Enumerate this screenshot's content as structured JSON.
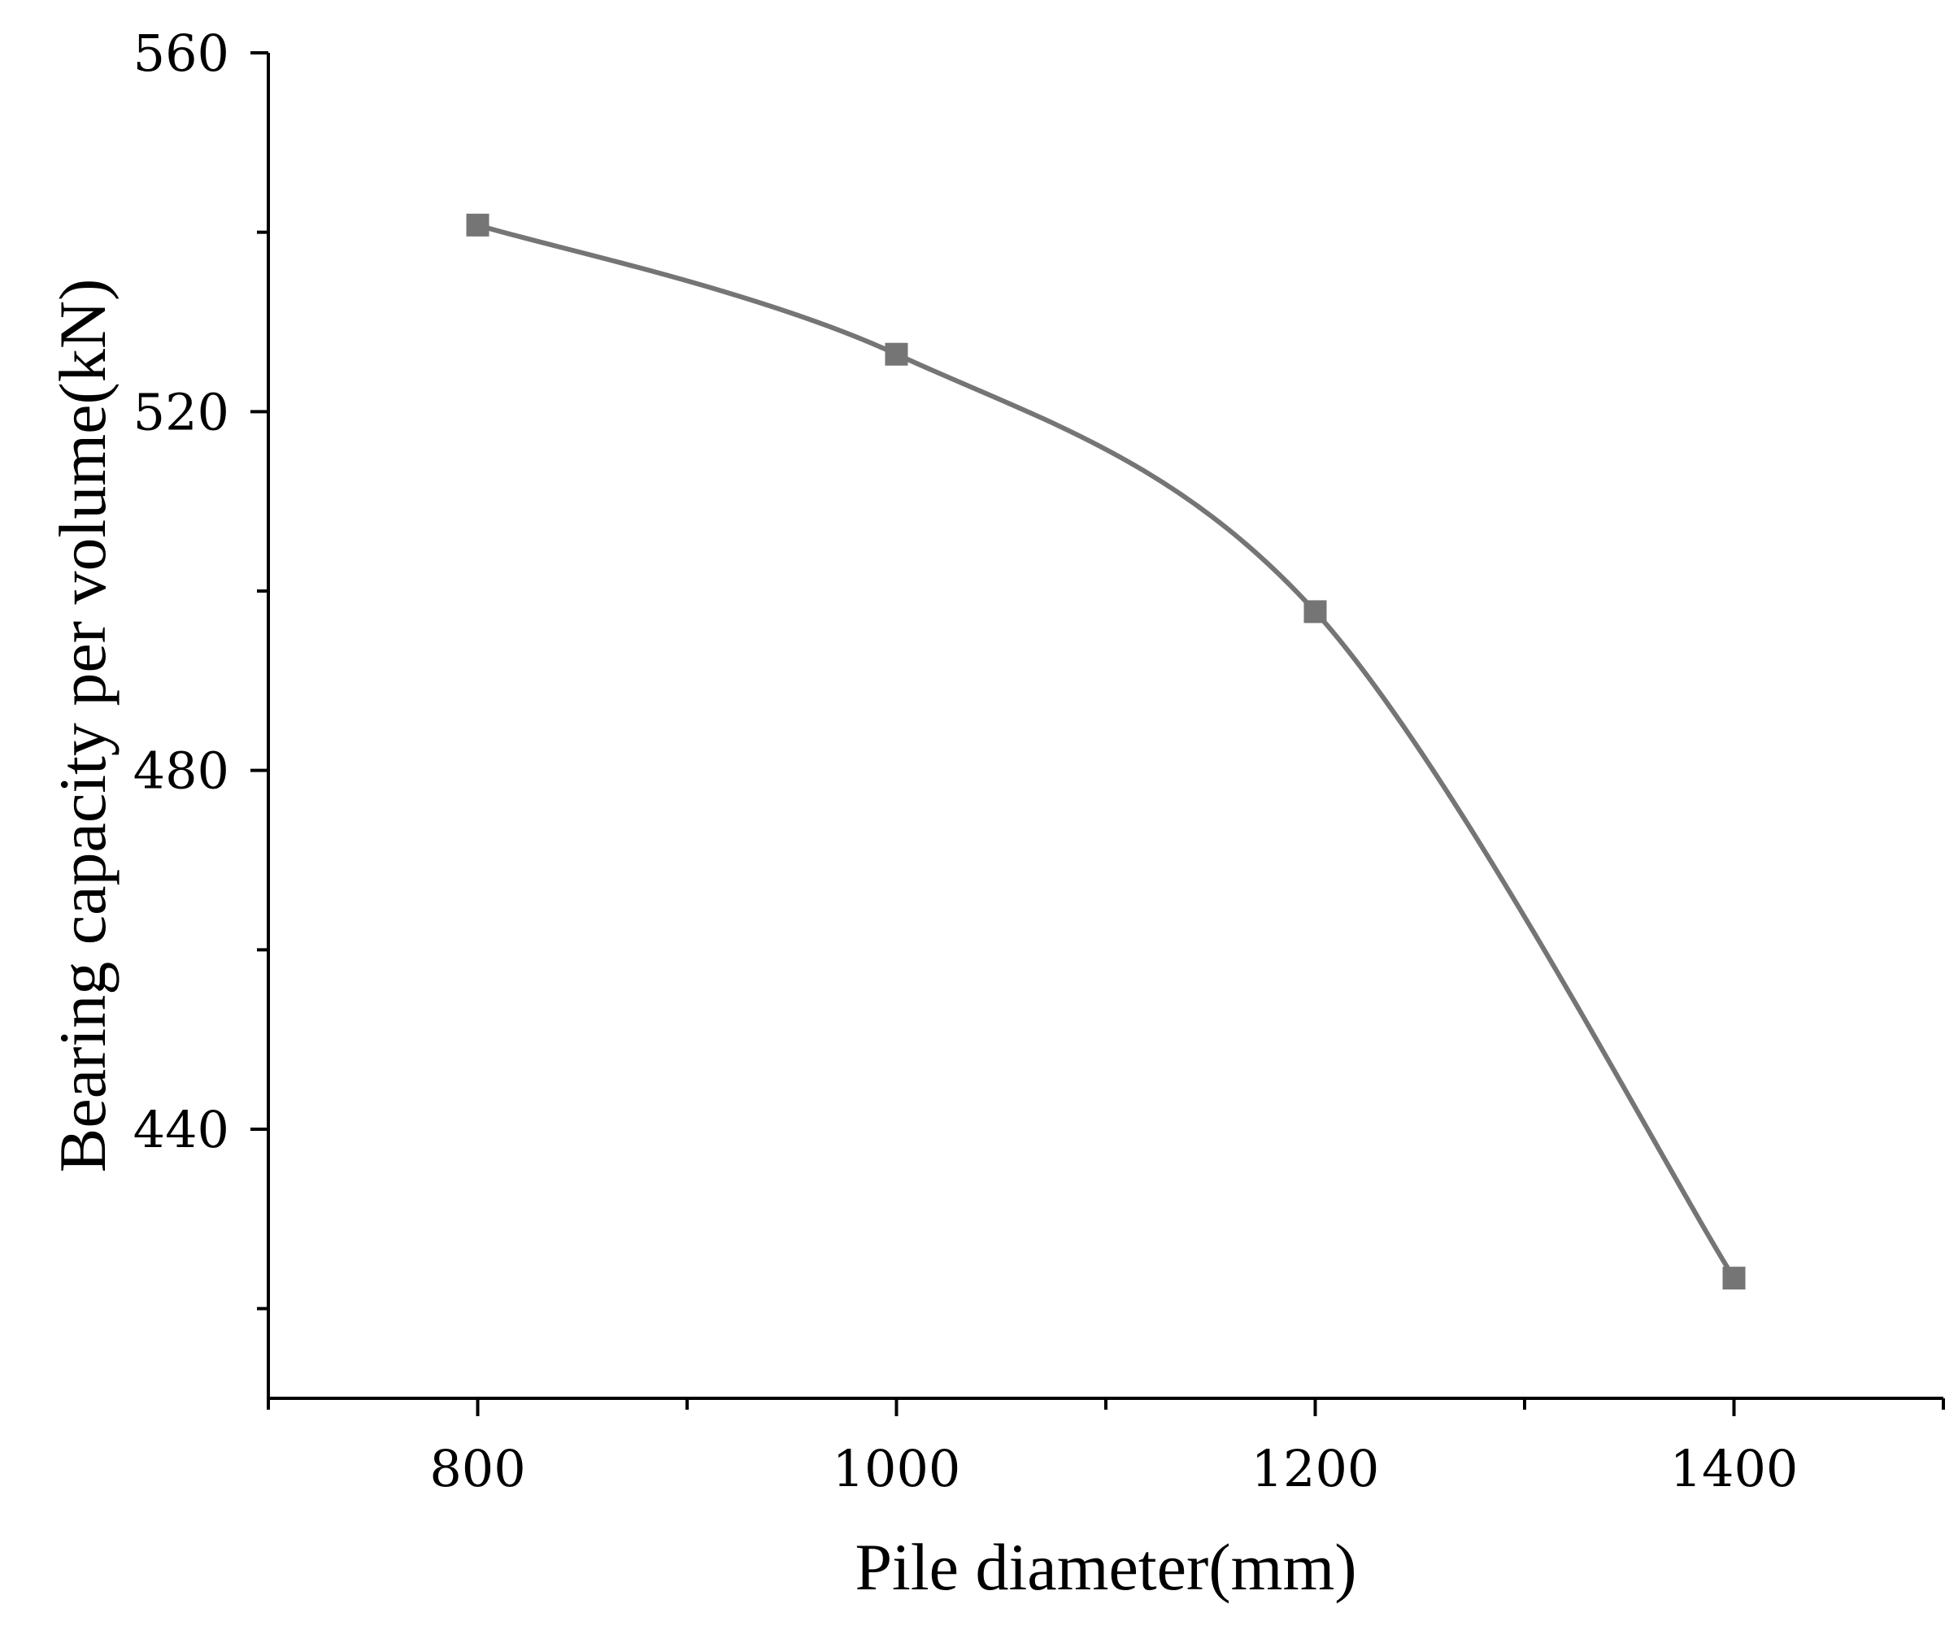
{
  "chart_data": {
    "type": "line",
    "title": "",
    "xlabel": "Pile diameter(mm)",
    "ylabel": "Bearing capacity per volume(kN)",
    "x": [
      800,
      1000,
      1200,
      1400
    ],
    "series": [
      {
        "values": [
          540.8,
          526.4,
          497.7,
          423.4
        ],
        "color": "#757575",
        "marker": "square"
      }
    ],
    "xlim": [
      700,
      1500
    ],
    "ylim": [
      410,
      560
    ],
    "xticks": [
      800,
      1000,
      1200,
      1400
    ],
    "xticks_minor": [
      700,
      900,
      1100,
      1300,
      1500
    ],
    "yticks": [
      440,
      480,
      520,
      560
    ],
    "yticks_minor": [
      420,
      460,
      500,
      540
    ],
    "grid": false,
    "legend": "none",
    "smooth": true
  }
}
